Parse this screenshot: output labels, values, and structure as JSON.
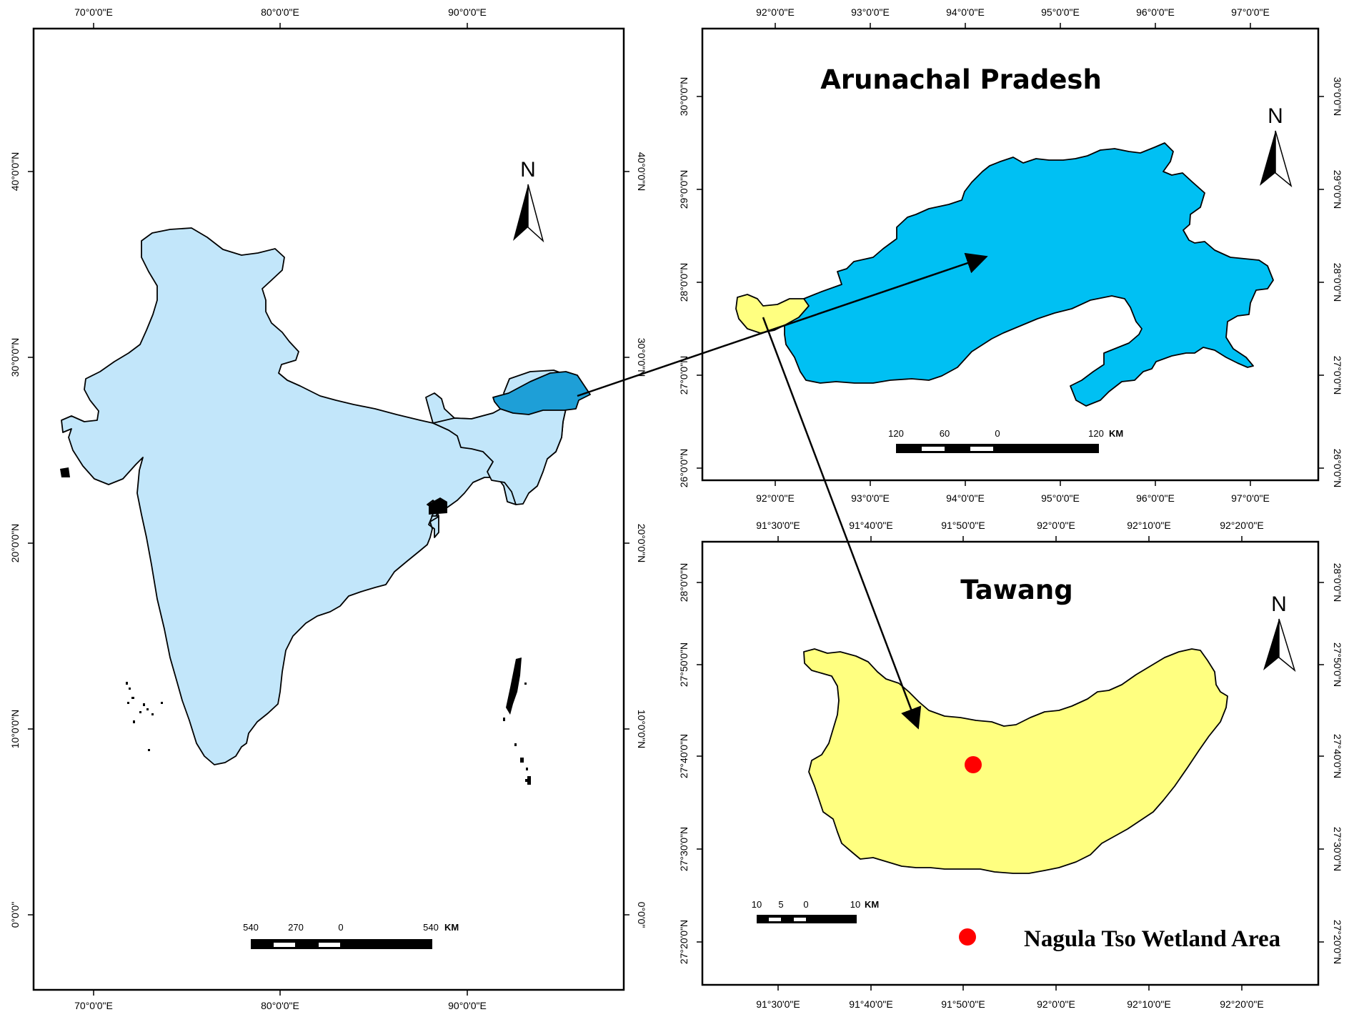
{
  "colors": {
    "india_fill": "#c2e6fa",
    "arunachal_in_india": "#1e9fd7",
    "arunachal_fill": "#00c0f3",
    "tawang_fill": "#ffff80",
    "wetland_marker": "#ff0000",
    "frame": "#000000"
  },
  "india_panel": {
    "north_label": "N",
    "top_ticks": [
      "70°0'0\"E",
      "80°0'0\"E",
      "90°0'0\"E"
    ],
    "bottom_ticks": [
      "70°0'0\"E",
      "80°0'0\"E",
      "90°0'0\"E"
    ],
    "left_ticks": [
      "40°0'0\"N",
      "30°0'0\"N",
      "20°0'0\"N",
      "10°0'0\"N",
      "0°0'0\""
    ],
    "right_ticks": [
      "40°0'0\"N",
      "30°0'0\"N",
      "20°0'0\"N",
      "10°0'0\"N",
      "0°0'0\""
    ],
    "scale": {
      "labels": [
        "540",
        "270",
        "0",
        "540"
      ],
      "unit": "KM"
    }
  },
  "arunachal_panel": {
    "title": "Arunachal Pradesh",
    "north_label": "N",
    "top_ticks": [
      "92°0'0\"E",
      "93°0'0\"E",
      "94°0'0\"E",
      "95°0'0\"E",
      "96°0'0\"E",
      "97°0'0\"E"
    ],
    "bottom_ticks": [
      "92°0'0\"E",
      "93°0'0\"E",
      "94°0'0\"E",
      "95°0'0\"E",
      "96°0'0\"E",
      "97°0'0\"E"
    ],
    "left_ticks": [
      "30°0'0\"N",
      "29°0'0\"N",
      "28°0'0\"N",
      "27°0'0\"N",
      "26°0'0\"N"
    ],
    "right_ticks": [
      "30°0'0\"N",
      "29°0'0\"N",
      "28°0'0\"N",
      "27°0'0\"N",
      "26°0'0\"N"
    ],
    "scale": {
      "labels": [
        "120",
        "60",
        "0",
        "120"
      ],
      "unit": "KM"
    }
  },
  "tawang_panel": {
    "title": "Tawang",
    "north_label": "N",
    "top_ticks": [
      "91°30'0\"E",
      "91°40'0\"E",
      "91°50'0\"E",
      "92°0'0\"E",
      "92°10'0\"E",
      "92°20'0\"E"
    ],
    "bottom_ticks": [
      "91°30'0\"E",
      "91°40'0\"E",
      "91°50'0\"E",
      "92°0'0\"E",
      "92°10'0\"E",
      "92°20'0\"E"
    ],
    "left_ticks": [
      "28°0'0\"N",
      "27°50'0\"N",
      "27°40'0\"N",
      "27°30'0\"N",
      "27°20'0\"N"
    ],
    "right_ticks": [
      "28°0'0\"N",
      "27°50'0\"N",
      "27°40'0\"N",
      "27°30'0\"N",
      "27°20'0\"N"
    ],
    "scale": {
      "labels": [
        "10",
        "5",
        "0",
        "10"
      ],
      "unit": "KM"
    },
    "legend_label": "Nagula Tso Wetland Area"
  }
}
